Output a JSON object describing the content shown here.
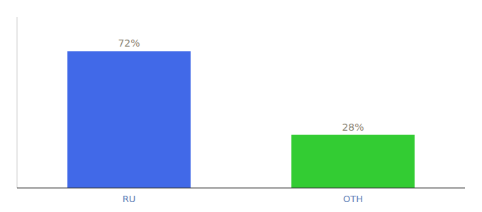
{
  "chart_data": {
    "type": "bar",
    "categories": [
      "RU",
      "OTH"
    ],
    "values": [
      72,
      28
    ],
    "colors": [
      "#4169e8",
      "#33cc33"
    ],
    "value_labels": [
      "72%",
      "28%"
    ],
    "data_labels": true,
    "ylim": [
      0,
      90
    ],
    "tick_labels": "x"
  }
}
